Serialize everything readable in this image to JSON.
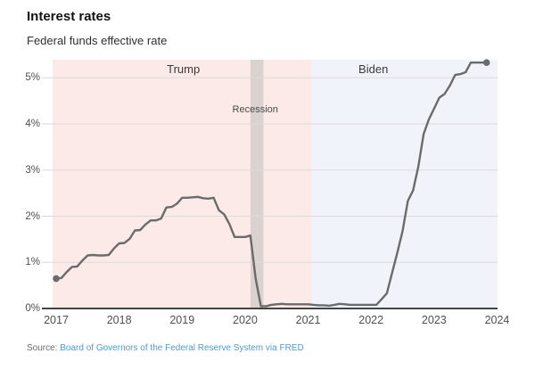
{
  "header": {
    "title": "Interest rates",
    "subtitle": "Federal funds effective rate"
  },
  "source": {
    "prefix": "Source:",
    "link_text": "Board of Governors of the Federal Reserve System via FRED"
  },
  "chart_data": {
    "type": "line",
    "title": "Federal funds effective rate",
    "xlabel": "",
    "ylabel": "",
    "grid": "horizontal",
    "x_tick_labels": [
      "2017",
      "2018",
      "2019",
      "2020",
      "2021",
      "2022",
      "2023",
      "2024"
    ],
    "y_tick_labels": [
      "0%",
      "1%",
      "2%",
      "3%",
      "4%",
      "5%"
    ],
    "xlim": [
      2016.94,
      2024.01
    ],
    "ylim": [
      0,
      5.39
    ],
    "line_color": "#6b6b6b",
    "gridline_color": "#dbdbdb",
    "axis_color": "#2a2a2a",
    "end_markers": true,
    "series": [
      {
        "name": "Federal funds effective rate (%)",
        "start_year": 2017,
        "points_per_year": 12,
        "values": [
          0.65,
          0.66,
          0.79,
          0.9,
          0.91,
          1.04,
          1.15,
          1.16,
          1.15,
          1.15,
          1.16,
          1.3,
          1.41,
          1.42,
          1.51,
          1.69,
          1.7,
          1.82,
          1.91,
          1.91,
          1.95,
          2.19,
          2.2,
          2.27,
          2.4,
          2.4,
          2.41,
          2.42,
          2.39,
          2.38,
          2.4,
          2.13,
          2.04,
          1.83,
          1.55,
          1.55,
          1.55,
          1.58,
          0.65,
          0.05,
          0.05,
          0.08,
          0.09,
          0.1,
          0.09,
          0.09,
          0.09,
          0.09,
          0.09,
          0.08,
          0.07,
          0.07,
          0.06,
          0.08,
          0.1,
          0.09,
          0.08,
          0.08,
          0.08,
          0.08,
          0.08,
          0.08,
          0.2,
          0.33,
          0.77,
          1.21,
          1.68,
          2.33,
          2.56,
          3.08,
          3.78,
          4.1,
          4.33,
          4.57,
          4.65,
          4.83,
          5.06,
          5.08,
          5.12,
          5.33,
          5.33,
          5.33,
          5.33
        ]
      }
    ],
    "bands": [
      {
        "label": "Trump",
        "start": 2016.94,
        "end": 2021.055,
        "color": "#fbeae7",
        "label_x": 2019.02
      },
      {
        "label": "Biden",
        "start": 2021.055,
        "end": 2024.01,
        "color": "#f0f3f9",
        "label_x": 2022.035
      }
    ],
    "recession_band": {
      "label": "Recession",
      "start": 2020.085,
      "end": 2020.29,
      "color": "#d9d2cf",
      "label_x": 2020.16,
      "label_y": 4.31
    }
  }
}
